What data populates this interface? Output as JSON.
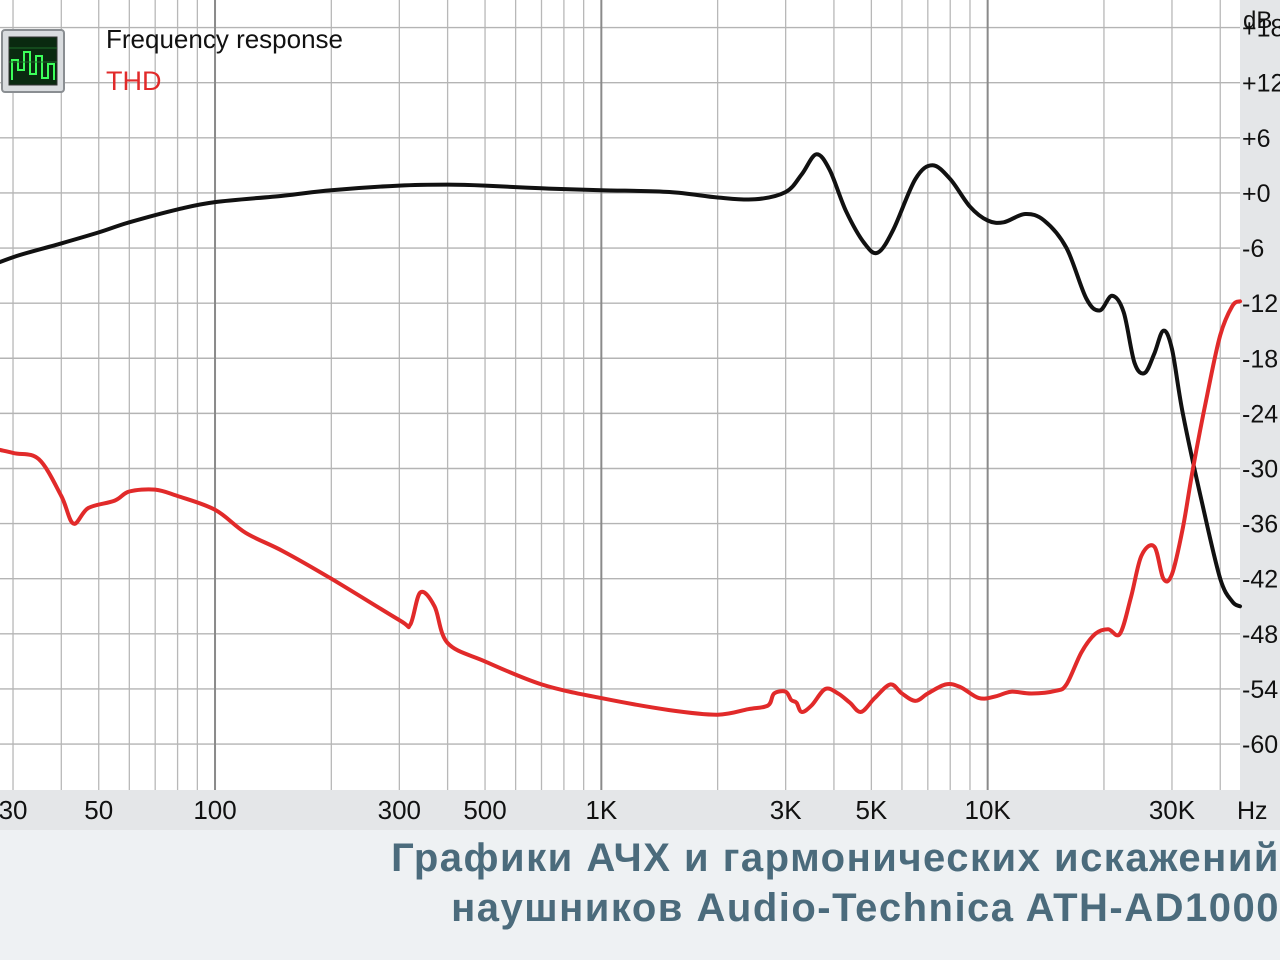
{
  "chart_data": {
    "type": "line",
    "x_scale": "log",
    "xlim": [
      20,
      45000
    ],
    "ylim": [
      -65,
      21
    ],
    "x_unit": "Hz",
    "y_unit": "dB",
    "grid": true,
    "legend_position": "top-left",
    "x_tick_labels": [
      {
        "value": 30,
        "label": "30"
      },
      {
        "value": 50,
        "label": "50"
      },
      {
        "value": 100,
        "label": "100"
      },
      {
        "value": 300,
        "label": "300"
      },
      {
        "value": 500,
        "label": "500"
      },
      {
        "value": 1000,
        "label": "1K"
      },
      {
        "value": 3000,
        "label": "3K"
      },
      {
        "value": 5000,
        "label": "5K"
      },
      {
        "value": 10000,
        "label": "10K"
      },
      {
        "value": 30000,
        "label": "30K"
      }
    ],
    "y_tick_labels": [
      {
        "value": 18,
        "label": "+18"
      },
      {
        "value": 12,
        "label": "+12"
      },
      {
        "value": 6,
        "label": "+6"
      },
      {
        "value": 0,
        "label": "+0"
      },
      {
        "value": -6,
        "label": "-6"
      },
      {
        "value": -12,
        "label": "-12"
      },
      {
        "value": -18,
        "label": "-18"
      },
      {
        "value": -24,
        "label": "-24"
      },
      {
        "value": -30,
        "label": "-30"
      },
      {
        "value": -36,
        "label": "-36"
      },
      {
        "value": -42,
        "label": "-42"
      },
      {
        "value": -48,
        "label": "-48"
      },
      {
        "value": -54,
        "label": "-54"
      },
      {
        "value": -60,
        "label": "-60"
      }
    ],
    "series": [
      {
        "name": "Frequency response",
        "color": "#111111",
        "points": [
          [
            20,
            -11.5
          ],
          [
            25,
            -8.5
          ],
          [
            30,
            -7
          ],
          [
            40,
            -5.5
          ],
          [
            50,
            -4.3
          ],
          [
            60,
            -3.2
          ],
          [
            80,
            -1.8
          ],
          [
            100,
            -1
          ],
          [
            150,
            -0.3
          ],
          [
            200,
            0.3
          ],
          [
            300,
            0.8
          ],
          [
            400,
            0.9
          ],
          [
            500,
            0.8
          ],
          [
            700,
            0.5
          ],
          [
            1000,
            0.3
          ],
          [
            1500,
            0.1
          ],
          [
            2000,
            -0.5
          ],
          [
            2500,
            -0.7
          ],
          [
            3000,
            0.1
          ],
          [
            3300,
            2
          ],
          [
            3600,
            4.2
          ],
          [
            3900,
            2.5
          ],
          [
            4300,
            -2
          ],
          [
            4800,
            -5.5
          ],
          [
            5200,
            -6.5
          ],
          [
            5700,
            -4
          ],
          [
            6500,
            1.5
          ],
          [
            7200,
            3
          ],
          [
            8000,
            1.5
          ],
          [
            9000,
            -1.5
          ],
          [
            10000,
            -3
          ],
          [
            11000,
            -3.2
          ],
          [
            12500,
            -2.3
          ],
          [
            14000,
            -3
          ],
          [
            16000,
            -6
          ],
          [
            18000,
            -11.5
          ],
          [
            19500,
            -12.8
          ],
          [
            21000,
            -11.2
          ],
          [
            22500,
            -13
          ],
          [
            24000,
            -18.5
          ],
          [
            25500,
            -19.6
          ],
          [
            27000,
            -17.5
          ],
          [
            28500,
            -15
          ],
          [
            30000,
            -17
          ],
          [
            32000,
            -24
          ],
          [
            36000,
            -34
          ],
          [
            40000,
            -42
          ],
          [
            43000,
            -44.5
          ],
          [
            45000,
            -45
          ]
        ]
      },
      {
        "name": "THD",
        "color": "#e12a2a",
        "points": [
          [
            20,
            -26
          ],
          [
            25,
            -27.5
          ],
          [
            30,
            -28.3
          ],
          [
            35,
            -29
          ],
          [
            40,
            -33
          ],
          [
            43,
            -36
          ],
          [
            47,
            -34.3
          ],
          [
            55,
            -33.5
          ],
          [
            60,
            -32.5
          ],
          [
            70,
            -32.3
          ],
          [
            80,
            -33
          ],
          [
            100,
            -34.5
          ],
          [
            120,
            -37
          ],
          [
            150,
            -39
          ],
          [
            200,
            -42
          ],
          [
            300,
            -46.5
          ],
          [
            320,
            -47
          ],
          [
            340,
            -43.5
          ],
          [
            370,
            -45
          ],
          [
            400,
            -49
          ],
          [
            500,
            -51
          ],
          [
            700,
            -53.5
          ],
          [
            1000,
            -55
          ],
          [
            1500,
            -56.3
          ],
          [
            2000,
            -56.8
          ],
          [
            2400,
            -56.2
          ],
          [
            2700,
            -55.8
          ],
          [
            2800,
            -54.5
          ],
          [
            3000,
            -54.3
          ],
          [
            3100,
            -55.2
          ],
          [
            3200,
            -55.5
          ],
          [
            3300,
            -56.5
          ],
          [
            3500,
            -55.8
          ],
          [
            3800,
            -54
          ],
          [
            4100,
            -54.5
          ],
          [
            4400,
            -55.5
          ],
          [
            4700,
            -56.5
          ],
          [
            5100,
            -55
          ],
          [
            5600,
            -53.5
          ],
          [
            6000,
            -54.5
          ],
          [
            6500,
            -55.3
          ],
          [
            7000,
            -54.5
          ],
          [
            7800,
            -53.5
          ],
          [
            8500,
            -53.8
          ],
          [
            9500,
            -55
          ],
          [
            10500,
            -54.8
          ],
          [
            11500,
            -54.3
          ],
          [
            13000,
            -54.5
          ],
          [
            15000,
            -54.2
          ],
          [
            16000,
            -53.5
          ],
          [
            17500,
            -50
          ],
          [
            19000,
            -48
          ],
          [
            20500,
            -47.5
          ],
          [
            22000,
            -48
          ],
          [
            23500,
            -44
          ],
          [
            25000,
            -39.5
          ],
          [
            27000,
            -38.5
          ],
          [
            28500,
            -42
          ],
          [
            30000,
            -41.5
          ],
          [
            32000,
            -36.5
          ],
          [
            34000,
            -30
          ],
          [
            37000,
            -22
          ],
          [
            40000,
            -15.5
          ],
          [
            43000,
            -12.3
          ],
          [
            45000,
            -11.8
          ]
        ]
      }
    ]
  },
  "axis": {
    "y_unit_label": "dB",
    "x_unit_label": "Hz"
  },
  "legend": {
    "frequency_response": "Frequency response",
    "thd": "THD"
  },
  "caption": {
    "line1": "Графики АЧХ и гармонических искажений",
    "line2": "наушников Audio-Technica ATH-AD1000"
  },
  "icon": {
    "name": "spectrum-analyzer-icon"
  }
}
